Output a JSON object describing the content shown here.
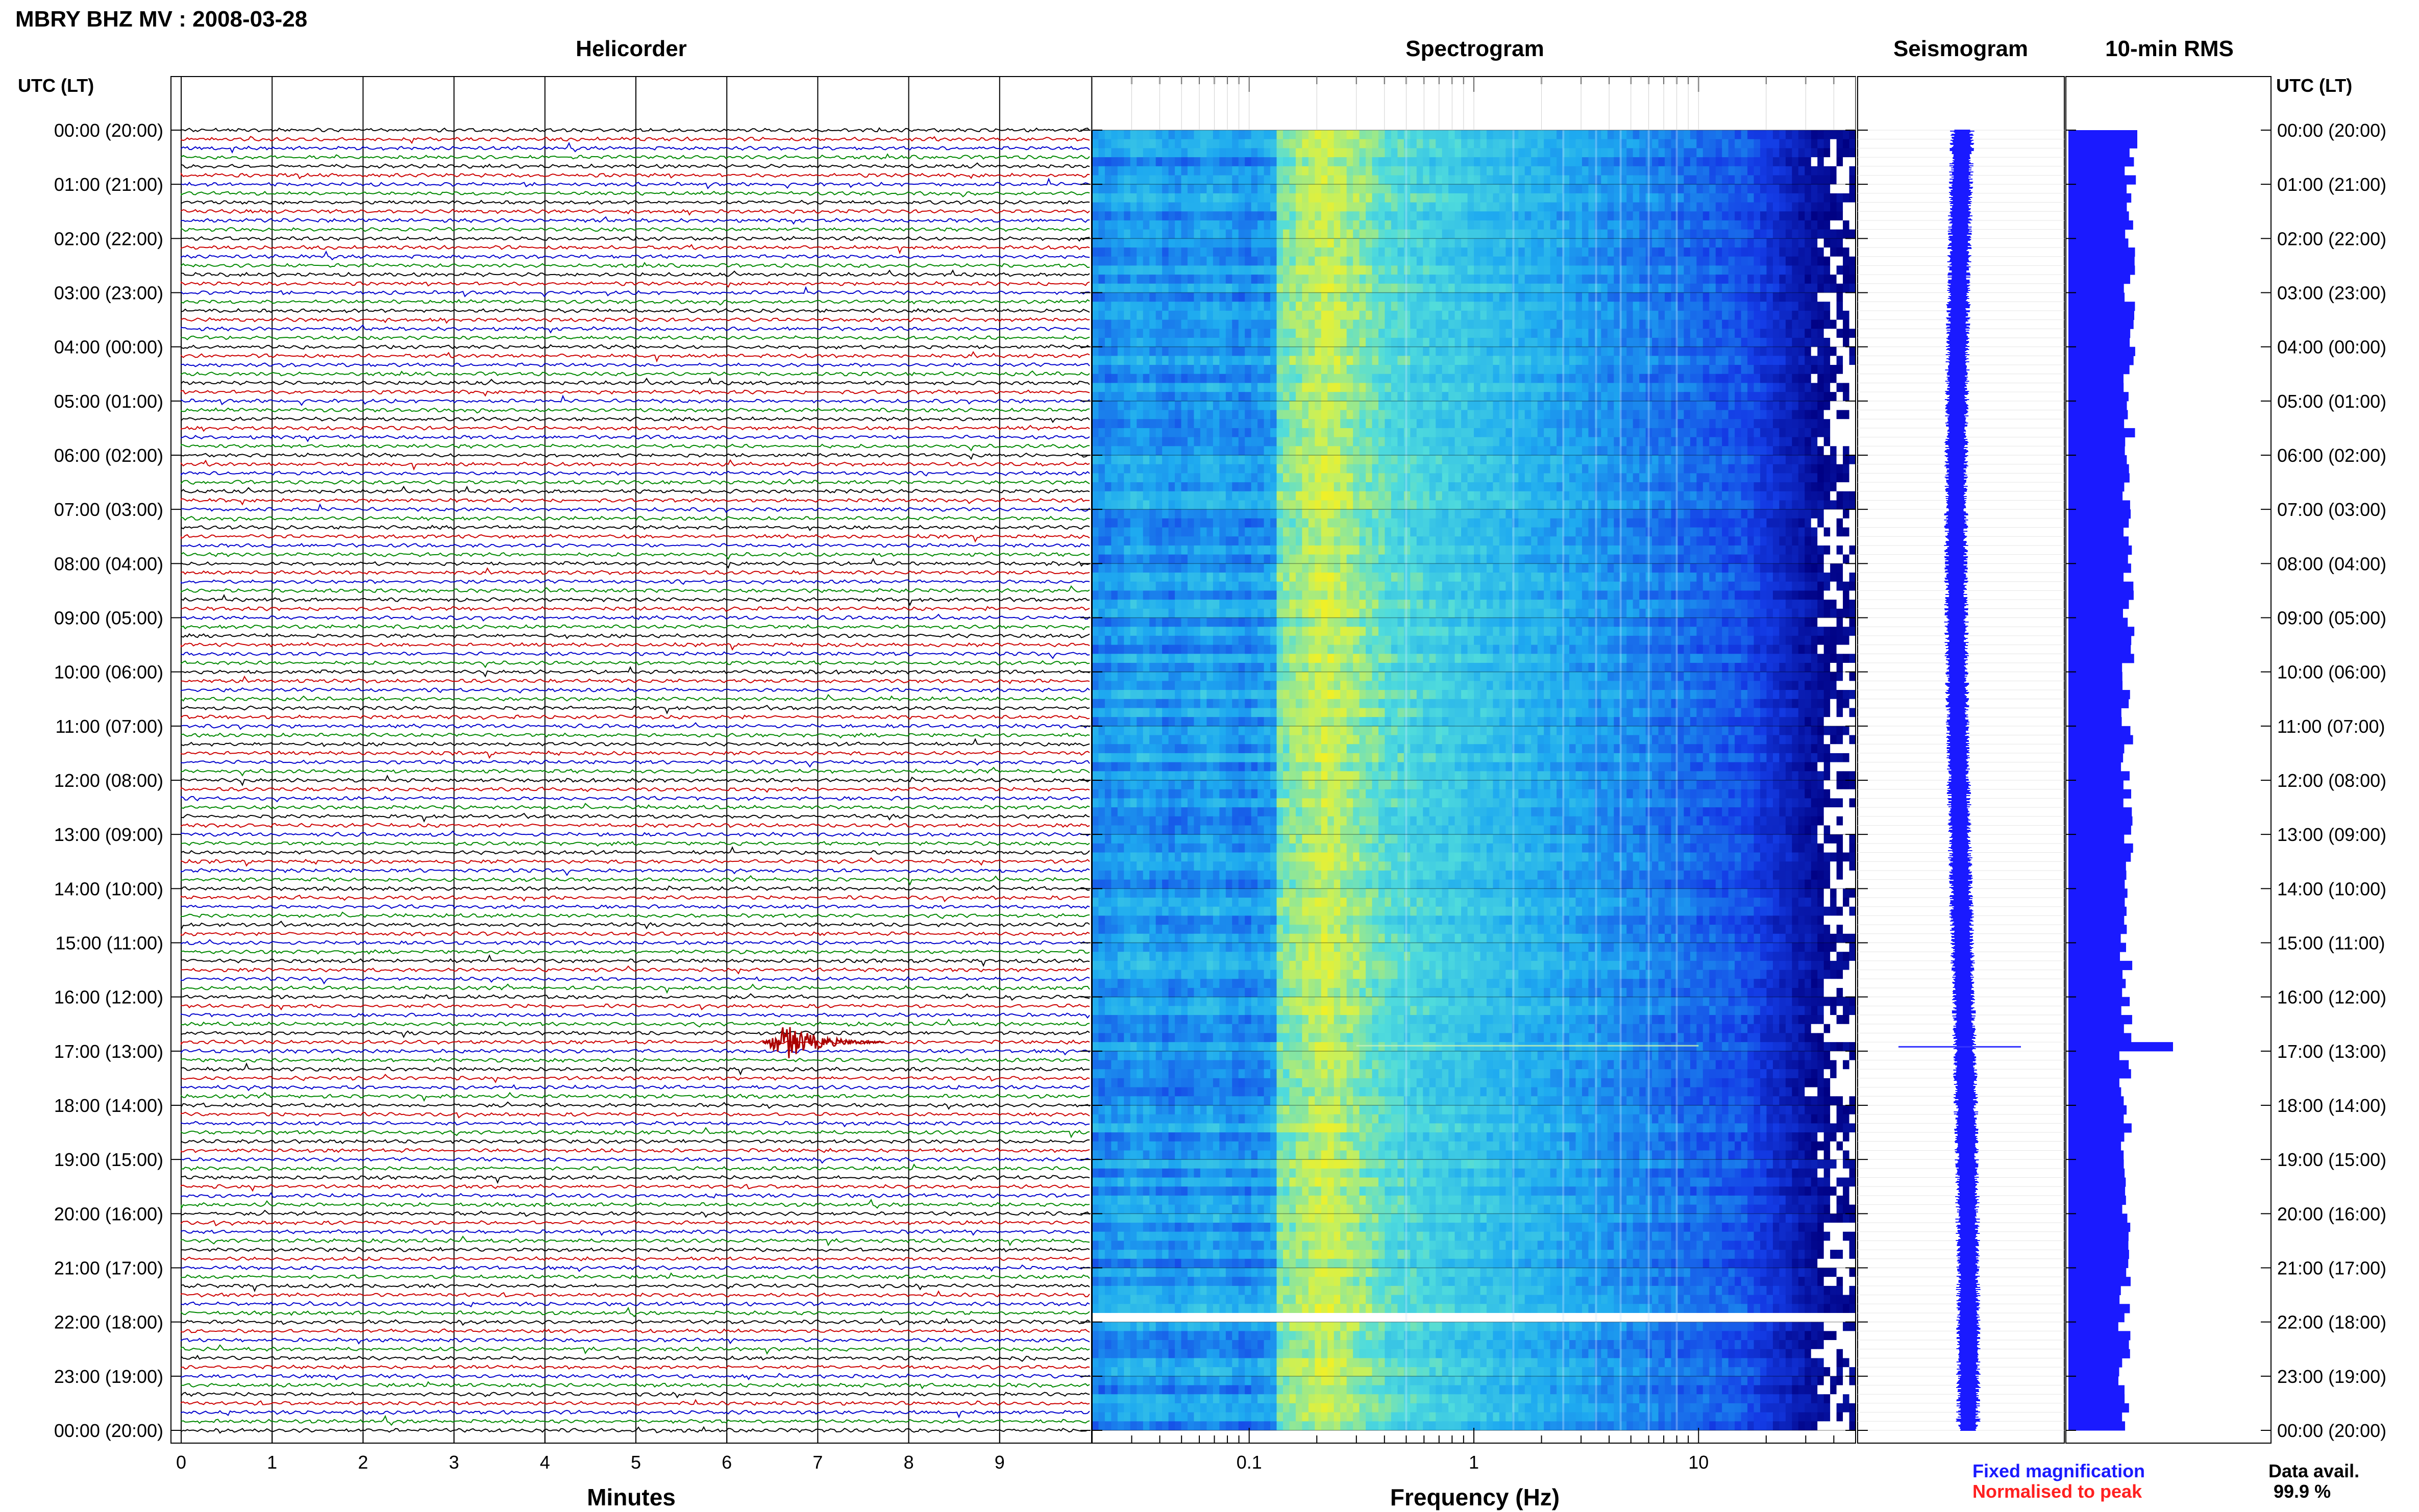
{
  "header": {
    "title": "MBRY BHZ MV : 2008-03-28"
  },
  "panels": {
    "helicorder": "Helicorder",
    "spectrogram": "Spectrogram",
    "seismogram": "Seismogram",
    "rms": "10-min RMS"
  },
  "axis": {
    "utc_label_left": "UTC (LT)",
    "utc_label_right": "UTC (LT)",
    "minutes_label": "Minutes",
    "frequency_label": "Frequency (Hz)"
  },
  "legend": {
    "fixed": "Fixed magnification",
    "normalised": "Normalised to peak",
    "fixed_color": "#1a1aff",
    "normalised_color": "#ff2020"
  },
  "data_avail": {
    "label": "Data avail.",
    "value": "99.9 %"
  },
  "chart_data": {
    "type": "helicorder_spectrogram",
    "time_ticks": [
      "00:00 (20:00)",
      "01:00 (21:00)",
      "02:00 (22:00)",
      "03:00 (23:00)",
      "04:00 (00:00)",
      "05:00 (01:00)",
      "06:00 (02:00)",
      "07:00 (03:00)",
      "08:00 (04:00)",
      "09:00 (05:00)",
      "10:00 (06:00)",
      "11:00 (07:00)",
      "12:00 (08:00)",
      "13:00 (09:00)",
      "14:00 (10:00)",
      "15:00 (11:00)",
      "16:00 (12:00)",
      "17:00 (13:00)",
      "18:00 (14:00)",
      "19:00 (15:00)",
      "20:00 (16:00)",
      "21:00 (17:00)",
      "22:00 (18:00)",
      "23:00 (19:00)",
      "00:00 (20:00)"
    ],
    "minute_ticks": [
      "0",
      "1",
      "2",
      "3",
      "4",
      "5",
      "6",
      "7",
      "8",
      "9"
    ],
    "frequency_ticks": [
      {
        "value": 0.1,
        "label": "0.1"
      },
      {
        "value": 1,
        "label": "1"
      },
      {
        "value": 10,
        "label": "10"
      }
    ],
    "frequency_range_hz": [
      0.02,
      50
    ],
    "minutes_range": [
      0,
      10
    ],
    "hours_range": [
      0,
      24
    ],
    "traces_per_hour": 6,
    "trace_colors": [
      "#000000",
      "#cc0000",
      "#0000cc",
      "#008800"
    ],
    "event": {
      "utc_hour": 16.8,
      "minute": 6.7
    },
    "rms_spike_hour": 16.9,
    "spectrogram_gap_hour": 21.85
  }
}
